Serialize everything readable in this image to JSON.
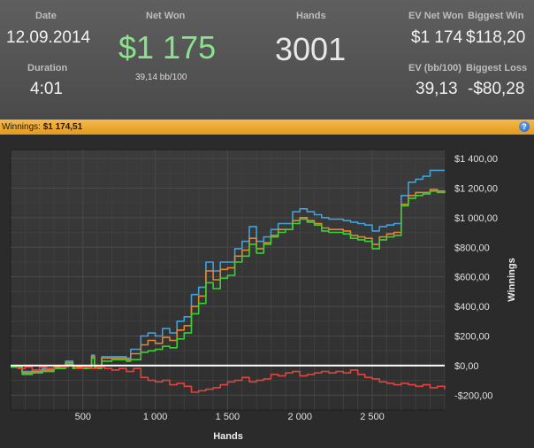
{
  "stats": {
    "date_label": "Date",
    "date_value": "12.09.2014",
    "duration_label": "Duration",
    "duration_value": "4:01",
    "net_won_label": "Net Won",
    "net_won_value": "$1 175",
    "net_won_sub": "39,14 bb/100",
    "hands_label": "Hands",
    "hands_value": "3001",
    "ev_net_won_label": "EV Net Won",
    "ev_net_won_value": "$1 174",
    "biggest_win_label": "Biggest Win",
    "biggest_win_value": "$118,20",
    "ev_bb_label": "EV (bb/100)",
    "ev_bb_value": "39,13",
    "biggest_loss_label": "Biggest Loss",
    "biggest_loss_value": "-$80,28"
  },
  "winnings_bar": {
    "label": "Winnings:",
    "value": "$1 174,51",
    "help": "?"
  },
  "colors": {
    "blue": "#3fa2dd",
    "orange": "#e4852f",
    "green": "#39d034",
    "red": "#e0443e",
    "zero": "#ffffff"
  },
  "chart_data": {
    "type": "line",
    "xlabel": "Hands",
    "ylabel": "Winnings",
    "xlim": [
      0,
      3001
    ],
    "ylim": [
      -300,
      1460
    ],
    "x_ticks": [
      500,
      1000,
      1500,
      2000,
      2500
    ],
    "x_tick_labels": [
      "500",
      "1 000",
      "1 500",
      "2 000",
      "2 500"
    ],
    "y_ticks": [
      -200,
      0,
      200,
      400,
      600,
      800,
      1000,
      1200,
      1400
    ],
    "y_tick_labels": [
      "-$200,00",
      "$0,00",
      "$200,00",
      "$400,00",
      "$600,00",
      "$800,00",
      "$1 000,00",
      "$1 200,00",
      "$1 400,00"
    ],
    "series": [
      {
        "color": "blue",
        "points": [
          [
            0,
            -10
          ],
          [
            80,
            -40
          ],
          [
            150,
            -30
          ],
          [
            220,
            -20
          ],
          [
            300,
            0
          ],
          [
            380,
            30
          ],
          [
            430,
            0
          ],
          [
            560,
            70
          ],
          [
            580,
            0
          ],
          [
            630,
            60
          ],
          [
            700,
            60
          ],
          [
            750,
            60
          ],
          [
            800,
            50
          ],
          [
            830,
            110
          ],
          [
            900,
            200
          ],
          [
            950,
            220
          ],
          [
            1000,
            200
          ],
          [
            1050,
            250
          ],
          [
            1100,
            220
          ],
          [
            1150,
            300
          ],
          [
            1200,
            330
          ],
          [
            1250,
            480
          ],
          [
            1300,
            530
          ],
          [
            1350,
            700
          ],
          [
            1400,
            640
          ],
          [
            1450,
            700
          ],
          [
            1500,
            700
          ],
          [
            1550,
            790
          ],
          [
            1600,
            840
          ],
          [
            1650,
            940
          ],
          [
            1700,
            840
          ],
          [
            1750,
            870
          ],
          [
            1800,
            920
          ],
          [
            1850,
            960
          ],
          [
            1900,
            960
          ],
          [
            1950,
            1040
          ],
          [
            2000,
            1060
          ],
          [
            2050,
            1040
          ],
          [
            2100,
            1020
          ],
          [
            2150,
            1000
          ],
          [
            2200,
            990
          ],
          [
            2250,
            990
          ],
          [
            2300,
            980
          ],
          [
            2350,
            970
          ],
          [
            2400,
            960
          ],
          [
            2450,
            950
          ],
          [
            2500,
            910
          ],
          [
            2550,
            940
          ],
          [
            2600,
            950
          ],
          [
            2650,
            960
          ],
          [
            2700,
            1150
          ],
          [
            2750,
            1240
          ],
          [
            2800,
            1260
          ],
          [
            2850,
            1280
          ],
          [
            2900,
            1320
          ],
          [
            2950,
            1320
          ],
          [
            3001,
            1320
          ]
        ]
      },
      {
        "color": "orange",
        "points": [
          [
            0,
            -10
          ],
          [
            80,
            -50
          ],
          [
            150,
            -40
          ],
          [
            220,
            -30
          ],
          [
            300,
            -10
          ],
          [
            380,
            20
          ],
          [
            430,
            -10
          ],
          [
            560,
            60
          ],
          [
            580,
            -10
          ],
          [
            630,
            50
          ],
          [
            700,
            50
          ],
          [
            750,
            50
          ],
          [
            800,
            40
          ],
          [
            830,
            80
          ],
          [
            900,
            140
          ],
          [
            950,
            170
          ],
          [
            1000,
            150
          ],
          [
            1050,
            190
          ],
          [
            1100,
            170
          ],
          [
            1150,
            240
          ],
          [
            1200,
            270
          ],
          [
            1250,
            400
          ],
          [
            1300,
            470
          ],
          [
            1350,
            640
          ],
          [
            1400,
            580
          ],
          [
            1450,
            650
          ],
          [
            1500,
            660
          ],
          [
            1550,
            740
          ],
          [
            1600,
            780
          ],
          [
            1650,
            860
          ],
          [
            1700,
            790
          ],
          [
            1750,
            830
          ],
          [
            1800,
            880
          ],
          [
            1850,
            920
          ],
          [
            1900,
            920
          ],
          [
            1950,
            980
          ],
          [
            2000,
            1000
          ],
          [
            2050,
            980
          ],
          [
            2100,
            960
          ],
          [
            2150,
            930
          ],
          [
            2200,
            920
          ],
          [
            2250,
            920
          ],
          [
            2300,
            910
          ],
          [
            2350,
            880
          ],
          [
            2400,
            870
          ],
          [
            2450,
            860
          ],
          [
            2500,
            820
          ],
          [
            2550,
            870
          ],
          [
            2600,
            890
          ],
          [
            2650,
            900
          ],
          [
            2700,
            1090
          ],
          [
            2750,
            1150
          ],
          [
            2800,
            1170
          ],
          [
            2850,
            1170
          ],
          [
            2900,
            1190
          ],
          [
            2950,
            1180
          ],
          [
            3001,
            1175
          ]
        ]
      },
      {
        "color": "green",
        "points": [
          [
            0,
            -10
          ],
          [
            80,
            -60
          ],
          [
            150,
            -50
          ],
          [
            220,
            -40
          ],
          [
            300,
            -20
          ],
          [
            380,
            10
          ],
          [
            430,
            -20
          ],
          [
            560,
            50
          ],
          [
            580,
            -20
          ],
          [
            630,
            30
          ],
          [
            700,
            40
          ],
          [
            750,
            40
          ],
          [
            800,
            30
          ],
          [
            830,
            40
          ],
          [
            900,
            90
          ],
          [
            950,
            100
          ],
          [
            1000,
            110
          ],
          [
            1050,
            130
          ],
          [
            1100,
            120
          ],
          [
            1150,
            180
          ],
          [
            1200,
            220
          ],
          [
            1250,
            350
          ],
          [
            1300,
            420
          ],
          [
            1350,
            560
          ],
          [
            1400,
            520
          ],
          [
            1450,
            590
          ],
          [
            1500,
            610
          ],
          [
            1550,
            700
          ],
          [
            1600,
            740
          ],
          [
            1650,
            820
          ],
          [
            1700,
            760
          ],
          [
            1750,
            820
          ],
          [
            1800,
            870
          ],
          [
            1850,
            900
          ],
          [
            1900,
            920
          ],
          [
            1950,
            960
          ],
          [
            2000,
            990
          ],
          [
            2050,
            970
          ],
          [
            2100,
            950
          ],
          [
            2150,
            910
          ],
          [
            2200,
            900
          ],
          [
            2250,
            900
          ],
          [
            2300,
            890
          ],
          [
            2350,
            860
          ],
          [
            2400,
            850
          ],
          [
            2450,
            840
          ],
          [
            2500,
            790
          ],
          [
            2550,
            850
          ],
          [
            2600,
            870
          ],
          [
            2650,
            880
          ],
          [
            2700,
            1080
          ],
          [
            2750,
            1130
          ],
          [
            2800,
            1150
          ],
          [
            2850,
            1160
          ],
          [
            2900,
            1180
          ],
          [
            2950,
            1170
          ],
          [
            3001,
            1175
          ]
        ]
      },
      {
        "color": "red",
        "points": [
          [
            0,
            0
          ],
          [
            50,
            -20
          ],
          [
            100,
            -10
          ],
          [
            150,
            -30
          ],
          [
            200,
            -10
          ],
          [
            250,
            -20
          ],
          [
            300,
            0
          ],
          [
            350,
            -10
          ],
          [
            400,
            0
          ],
          [
            450,
            -20
          ],
          [
            500,
            -10
          ],
          [
            550,
            -20
          ],
          [
            600,
            -10
          ],
          [
            650,
            -20
          ],
          [
            700,
            -30
          ],
          [
            750,
            -20
          ],
          [
            800,
            -40
          ],
          [
            850,
            -20
          ],
          [
            900,
            -80
          ],
          [
            950,
            -100
          ],
          [
            1000,
            -110
          ],
          [
            1050,
            -100
          ],
          [
            1100,
            -130
          ],
          [
            1150,
            -120
          ],
          [
            1200,
            -140
          ],
          [
            1250,
            -180
          ],
          [
            1300,
            -170
          ],
          [
            1350,
            -160
          ],
          [
            1400,
            -150
          ],
          [
            1450,
            -130
          ],
          [
            1500,
            -110
          ],
          [
            1550,
            -100
          ],
          [
            1600,
            -80
          ],
          [
            1650,
            -110
          ],
          [
            1700,
            -100
          ],
          [
            1750,
            -90
          ],
          [
            1800,
            -60
          ],
          [
            1850,
            -70
          ],
          [
            1900,
            -50
          ],
          [
            1950,
            -40
          ],
          [
            2000,
            -70
          ],
          [
            2050,
            -60
          ],
          [
            2100,
            -50
          ],
          [
            2150,
            -40
          ],
          [
            2200,
            -50
          ],
          [
            2250,
            -40
          ],
          [
            2300,
            -50
          ],
          [
            2350,
            -30
          ],
          [
            2400,
            -60
          ],
          [
            2450,
            -80
          ],
          [
            2500,
            -90
          ],
          [
            2550,
            -110
          ],
          [
            2600,
            -120
          ],
          [
            2650,
            -130
          ],
          [
            2700,
            -120
          ],
          [
            2750,
            -130
          ],
          [
            2800,
            -140
          ],
          [
            2850,
            -130
          ],
          [
            2900,
            -150
          ],
          [
            2950,
            -140
          ],
          [
            3001,
            -160
          ]
        ]
      }
    ]
  }
}
